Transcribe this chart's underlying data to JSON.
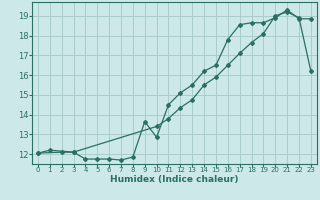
{
  "xlabel": "Humidex (Indice chaleur)",
  "bg_color": "#cce8e8",
  "grid_color": "#aacccc",
  "line_color": "#2a7060",
  "xlim": [
    -0.5,
    23.5
  ],
  "ylim": [
    11.5,
    19.7
  ],
  "xticks": [
    0,
    1,
    2,
    3,
    4,
    5,
    6,
    7,
    8,
    9,
    10,
    11,
    12,
    13,
    14,
    15,
    16,
    17,
    18,
    19,
    20,
    21,
    22,
    23
  ],
  "yticks": [
    12,
    13,
    14,
    15,
    16,
    17,
    18,
    19
  ],
  "curve1_x": [
    0,
    1,
    3,
    4,
    5,
    6,
    7,
    8,
    9,
    10,
    11,
    12,
    13,
    14,
    15,
    16,
    17,
    18,
    19,
    20,
    21,
    22,
    23
  ],
  "curve1_y": [
    12.05,
    12.2,
    12.1,
    11.75,
    11.75,
    11.75,
    11.7,
    11.85,
    13.65,
    12.85,
    14.5,
    15.1,
    15.5,
    16.2,
    16.5,
    17.8,
    18.55,
    18.65,
    18.65,
    18.9,
    19.3,
    18.85,
    18.85
  ],
  "curve2_x": [
    0,
    2,
    3,
    10,
    11,
    12,
    13,
    14,
    15,
    16,
    17,
    18,
    19,
    20,
    21,
    22,
    23
  ],
  "curve2_y": [
    12.05,
    12.1,
    12.1,
    13.4,
    13.8,
    14.35,
    14.75,
    15.5,
    15.9,
    16.5,
    17.1,
    17.65,
    18.1,
    19.0,
    19.2,
    18.9,
    16.2
  ]
}
